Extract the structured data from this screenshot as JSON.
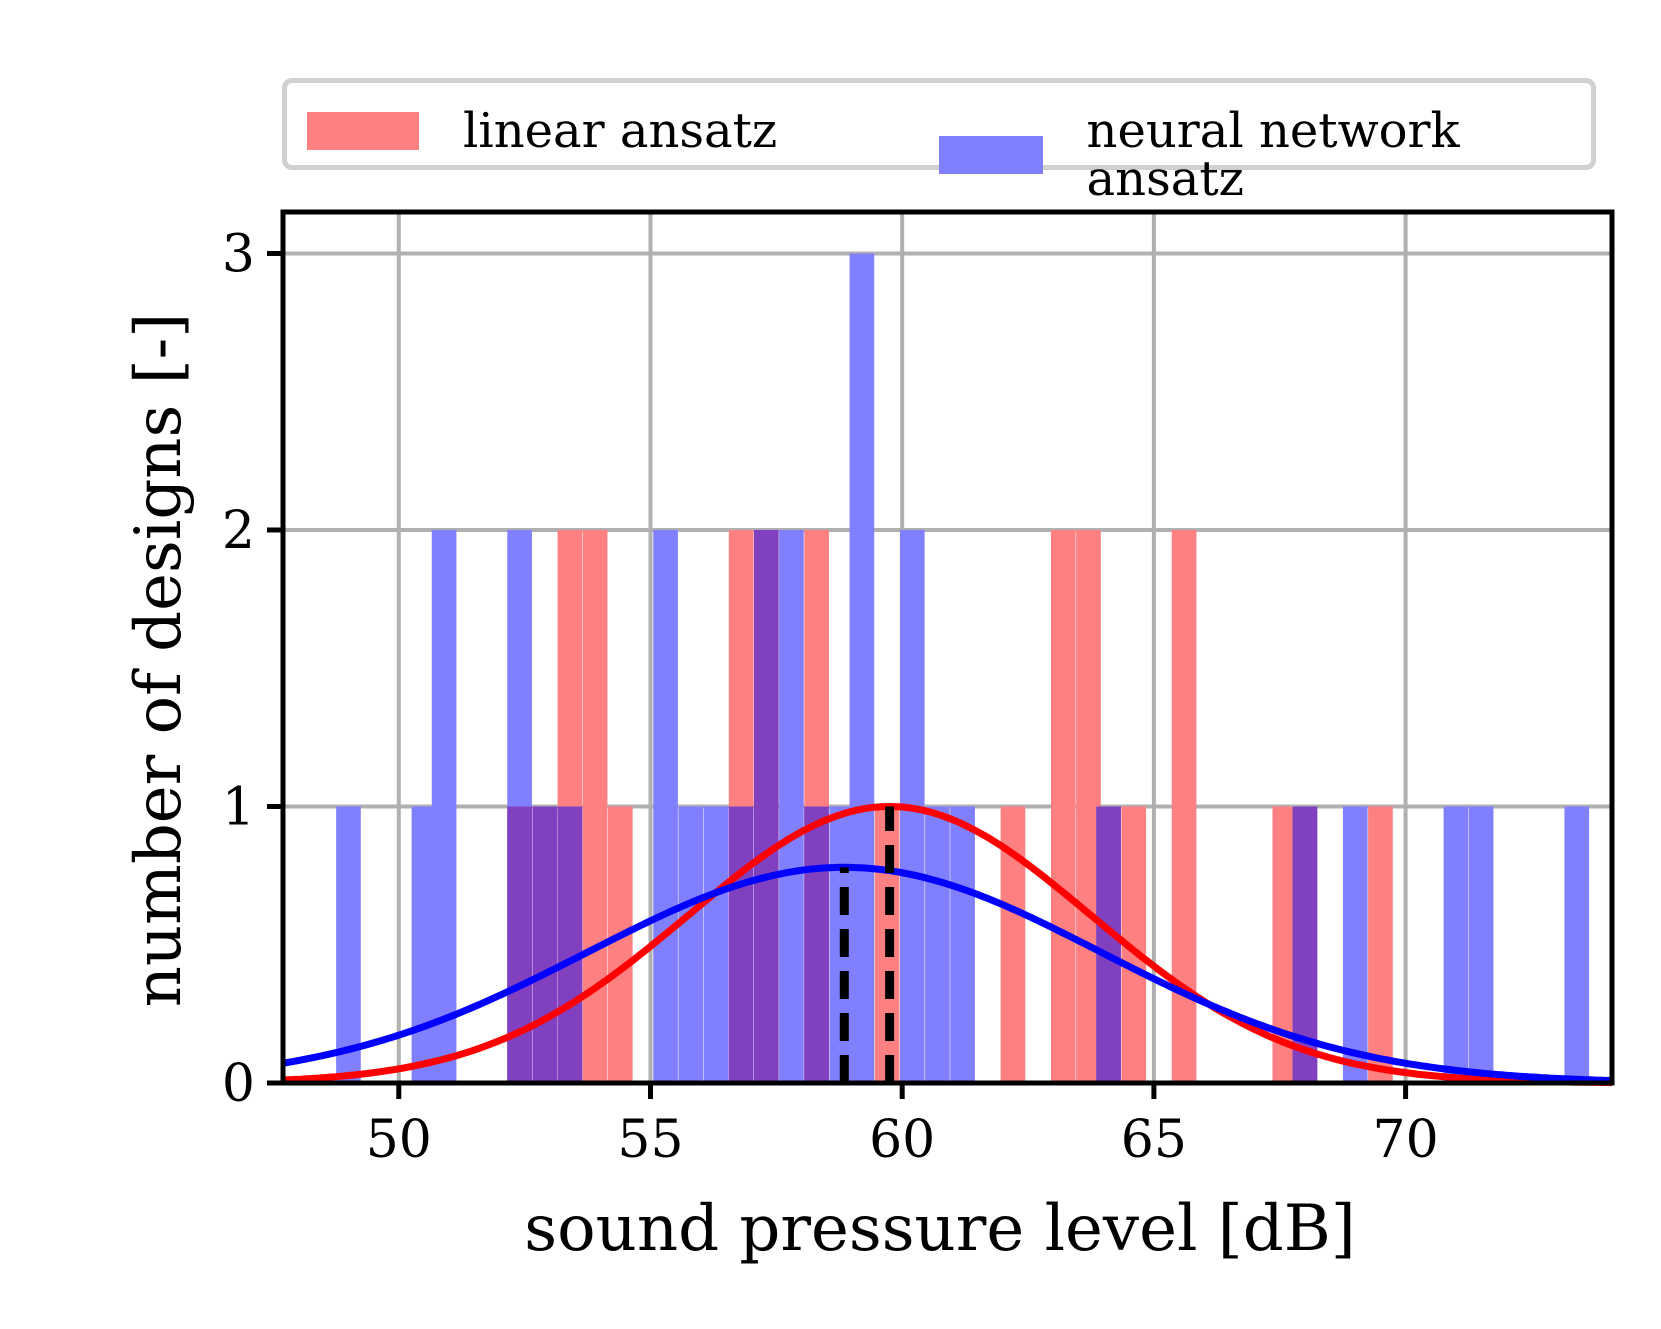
{
  "colors": {
    "linear": "#ff0000",
    "neural": "#0000ff",
    "linear_bar": "#ff8080",
    "neural_bar": "#8080ff",
    "overlap_bar": "#8040c0",
    "mean_line": "#000000",
    "grid": "#b0b0b0"
  },
  "chart_data": {
    "type": "bar",
    "xlabel": "sound pressure level [dB]",
    "ylabel": "number of designs [-]",
    "xlim": [
      47.7,
      74.1
    ],
    "ylim": [
      0,
      3.15
    ],
    "xticks": [
      50,
      55,
      60,
      65,
      70
    ],
    "yticks": [
      0,
      1,
      2,
      3
    ],
    "grid": true,
    "legend_position": "top, above plot",
    "bin_width": 0.49,
    "series": [
      {
        "name": "linear ansatz",
        "color": "#ff8080",
        "bars": [
          {
            "x": 52.4,
            "count": 1
          },
          {
            "x": 52.9,
            "count": 1
          },
          {
            "x": 53.4,
            "count": 2
          },
          {
            "x": 53.9,
            "count": 2
          },
          {
            "x": 54.4,
            "count": 1
          },
          {
            "x": 56.8,
            "count": 2
          },
          {
            "x": 57.3,
            "count": 2
          },
          {
            "x": 58.3,
            "count": 2
          },
          {
            "x": 59.7,
            "count": 1
          },
          {
            "x": 62.2,
            "count": 1
          },
          {
            "x": 63.2,
            "count": 2
          },
          {
            "x": 63.7,
            "count": 2
          },
          {
            "x": 64.1,
            "count": 1
          },
          {
            "x": 64.6,
            "count": 1
          },
          {
            "x": 65.6,
            "count": 2
          },
          {
            "x": 67.6,
            "count": 1
          },
          {
            "x": 68.0,
            "count": 1
          },
          {
            "x": 69.5,
            "count": 1
          }
        ],
        "fit": {
          "mean": 59.75,
          "std": 4.0,
          "peak": 1.0
        }
      },
      {
        "name": "neural network ansatz",
        "color": "#8080ff",
        "bars": [
          {
            "x": 49.0,
            "count": 1
          },
          {
            "x": 50.5,
            "count": 1
          },
          {
            "x": 50.9,
            "count": 2
          },
          {
            "x": 52.4,
            "count": 2
          },
          {
            "x": 52.9,
            "count": 1
          },
          {
            "x": 53.4,
            "count": 1
          },
          {
            "x": 55.3,
            "count": 2
          },
          {
            "x": 55.8,
            "count": 1
          },
          {
            "x": 56.3,
            "count": 1
          },
          {
            "x": 56.8,
            "count": 1
          },
          {
            "x": 57.3,
            "count": 2
          },
          {
            "x": 57.8,
            "count": 2
          },
          {
            "x": 58.3,
            "count": 1
          },
          {
            "x": 58.8,
            "count": 1
          },
          {
            "x": 59.2,
            "count": 3
          },
          {
            "x": 60.2,
            "count": 2
          },
          {
            "x": 60.7,
            "count": 1
          },
          {
            "x": 61.2,
            "count": 1
          },
          {
            "x": 64.1,
            "count": 1
          },
          {
            "x": 68.0,
            "count": 1
          },
          {
            "x": 69.0,
            "count": 1
          },
          {
            "x": 71.0,
            "count": 1
          },
          {
            "x": 71.5,
            "count": 1
          },
          {
            "x": 73.4,
            "count": 1
          }
        ],
        "fit": {
          "mean": 58.85,
          "std": 5.1,
          "peak": 0.78
        }
      }
    ],
    "mean_lines": [
      {
        "series": "neural network ansatz",
        "x": 58.85,
        "height": 0.78
      },
      {
        "series": "linear ansatz",
        "x": 59.75,
        "height": 1.0
      }
    ]
  }
}
